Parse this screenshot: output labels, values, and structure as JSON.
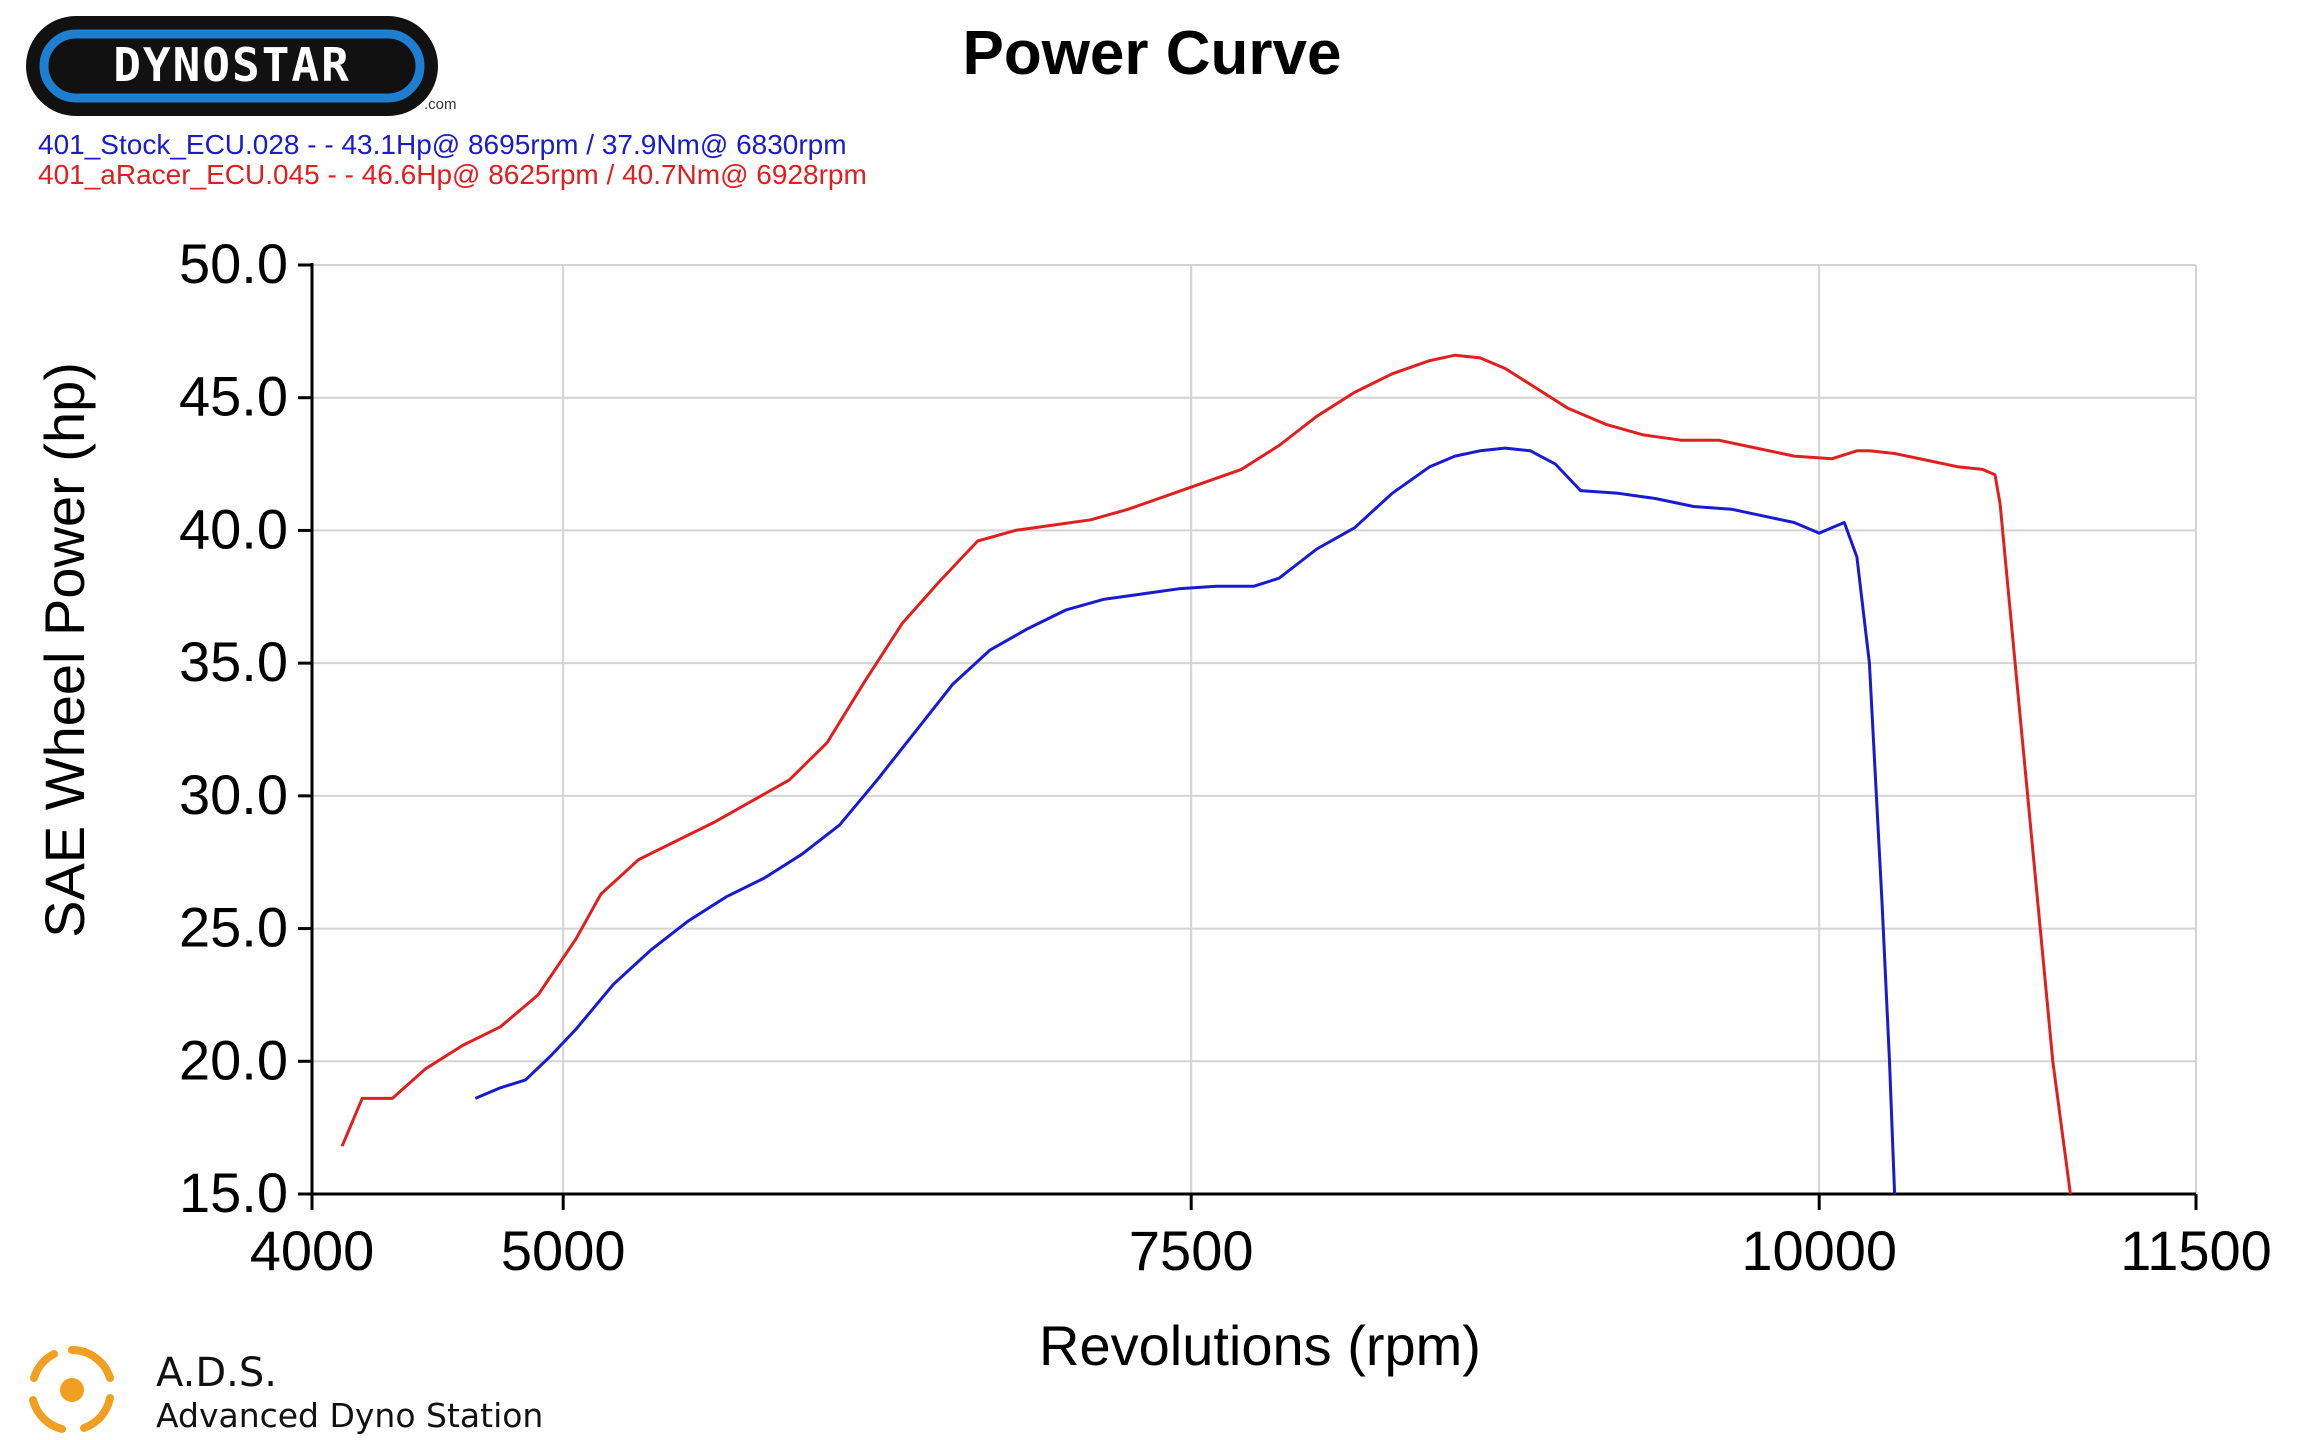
{
  "brand": {
    "logo_text": "DYNOSTAR",
    "logo_sub": ".com",
    "footer_name": "A.D.S.",
    "footer_full": "Advanced Dyno Station",
    "colors": {
      "logo_bg": "#111111",
      "logo_ring": "#1e7fd0",
      "ads_orange": "#f0a020"
    }
  },
  "chart_data": {
    "type": "line",
    "title": "Power Curve",
    "xlabel": "Revolutions (rpm)",
    "ylabel": "SAE Wheel Power (hp)",
    "xlim": [
      4000,
      11500
    ],
    "ylim": [
      15,
      50
    ],
    "xticks": [
      4000,
      5000,
      7500,
      10000,
      11500
    ],
    "xtick_labels": [
      "4000",
      "5000",
      "7500",
      "10000",
      "11500"
    ],
    "yticks": [
      15,
      20,
      25,
      30,
      35,
      40,
      45,
      50
    ],
    "ytick_labels": [
      "15.0",
      "20.0",
      "25.0",
      "30.0",
      "35.0",
      "40.0",
      "45.0",
      "50.0"
    ],
    "grid": true,
    "legend_position": "top-left",
    "series": [
      {
        "name": "401_Stock_ECU.028",
        "legend": "401_Stock_ECU.028 -  - 43.1Hp@ 8695rpm / 37.9Nm@ 6830rpm",
        "color": "#1a1ad0",
        "x": [
          4650,
          4750,
          4850,
          4950,
          5050,
          5200,
          5350,
          5500,
          5650,
          5800,
          5950,
          6100,
          6250,
          6400,
          6550,
          6700,
          6850,
          7000,
          7150,
          7300,
          7450,
          7600,
          7750,
          7850,
          8000,
          8150,
          8300,
          8450,
          8550,
          8650,
          8750,
          8850,
          8950,
          9050,
          9200,
          9350,
          9500,
          9650,
          9800,
          9900,
          10000,
          10050,
          10100,
          10150,
          10200,
          10250,
          10280,
          10300
        ],
        "y": [
          18.6,
          19.0,
          19.3,
          20.2,
          21.2,
          22.9,
          24.2,
          25.3,
          26.2,
          26.9,
          27.8,
          28.9,
          30.6,
          32.4,
          34.2,
          35.5,
          36.3,
          37.0,
          37.4,
          37.6,
          37.8,
          37.9,
          37.9,
          38.2,
          39.3,
          40.1,
          41.4,
          42.4,
          42.8,
          43.0,
          43.1,
          43.0,
          42.5,
          41.5,
          41.4,
          41.2,
          40.9,
          40.8,
          40.5,
          40.3,
          39.9,
          40.1,
          40.3,
          39.0,
          35.0,
          26.0,
          20.0,
          15.0
        ]
      },
      {
        "name": "401_aRacer_ECU.045",
        "legend": "401_aRacer_ECU.045 -  - 46.6Hp@ 8625rpm / 40.7Nm@ 6928rpm",
        "color": "#e02020",
        "x": [
          4120,
          4200,
          4320,
          4450,
          4600,
          4750,
          4900,
          5050,
          5150,
          5300,
          5450,
          5600,
          5750,
          5900,
          6050,
          6200,
          6350,
          6500,
          6650,
          6800,
          6950,
          7100,
          7250,
          7400,
          7550,
          7700,
          7850,
          8000,
          8150,
          8300,
          8450,
          8550,
          8650,
          8750,
          8850,
          9000,
          9150,
          9300,
          9450,
          9600,
          9750,
          9900,
          10050,
          10150,
          10200,
          10300,
          10450,
          10550,
          10650,
          10700,
          10720,
          10780,
          10850,
          10930,
          11000
        ],
        "y": [
          16.8,
          18.6,
          18.6,
          19.7,
          20.6,
          21.3,
          22.5,
          24.6,
          26.3,
          27.6,
          28.3,
          29.0,
          29.8,
          30.6,
          32.0,
          34.3,
          36.5,
          38.1,
          39.6,
          40.0,
          40.2,
          40.4,
          40.8,
          41.3,
          41.8,
          42.3,
          43.2,
          44.3,
          45.2,
          45.9,
          46.4,
          46.6,
          46.5,
          46.1,
          45.5,
          44.6,
          44.0,
          43.6,
          43.4,
          43.4,
          43.1,
          42.8,
          42.7,
          43.0,
          43.0,
          42.9,
          42.6,
          42.4,
          42.3,
          42.1,
          41.0,
          35.0,
          28.0,
          20.0,
          15.0
        ]
      }
    ]
  }
}
